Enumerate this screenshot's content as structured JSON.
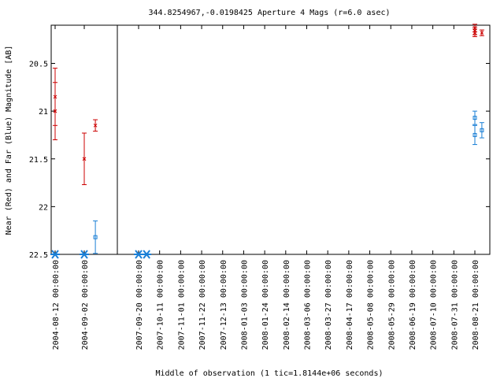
{
  "chart_data": {
    "type": "scatter",
    "title": "344.8254967,-0.0198425   Aperture 4 Mags (r=6.0 asec)",
    "xlabel": "Middle of observation (1 tic=1.8144e+06 seconds)",
    "ylabel": "Near (Red) and Far (Blue) Magnitude [AB]",
    "ylim": [
      22.5,
      20.1
    ],
    "y_ticks": [
      "20.5",
      "21",
      "21.5",
      "22",
      "22.5"
    ],
    "y_tick_values": [
      20.5,
      21.0,
      21.5,
      22.0,
      22.5
    ],
    "x_tick_labels": [
      "2004-08-12 00:00:00",
      "2004-09-02 00:00:00",
      "2007-09-20 00:00:00",
      "2007-10-11 00:00:00",
      "2007-11-01 00:00:00",
      "2007-11-22 00:00:00",
      "2007-12-13 00:00:00",
      "2008-01-03 00:00:00",
      "2008-01-24 00:00:00",
      "2008-02-14 00:00:00",
      "2008-03-06 00:00:00",
      "2008-03-27 00:00:00",
      "2008-04-17 00:00:00",
      "2008-05-08 00:00:00",
      "2008-05-29 00:00:00",
      "2008-06-19 00:00:00",
      "2008-07-10 00:00:00",
      "2008-07-31 00:00:00",
      "2008-08-21 00:00:00"
    ],
    "axis_break_after": "2004-09-02 00:00:00",
    "series": [
      {
        "color": "#cc0000",
        "marker": "x",
        "points": [
          {
            "x": "2004-08-12",
            "y": 20.85,
            "err": 0.3
          },
          {
            "x": "2004-08-12",
            "y": 21.0,
            "err": 0.3
          },
          {
            "x": "2004-09-02",
            "y": 21.5,
            "err": 0.27
          },
          {
            "x": "2004-09-10",
            "y": 21.15,
            "err": 0.06
          },
          {
            "x": "2008-08-21",
            "y": 20.13,
            "err": 0.04
          },
          {
            "x": "2008-08-21",
            "y": 20.16,
            "err": 0.04
          },
          {
            "x": "2008-08-21",
            "y": 20.18,
            "err": 0.04
          },
          {
            "x": "2008-08-28",
            "y": 20.18,
            "err": 0.03
          }
        ]
      },
      {
        "color": "#1a7fd6",
        "marker": "square",
        "points": [
          {
            "x": "2004-09-10",
            "y": 22.32,
            "err": 0.17
          },
          {
            "x": "2008-08-21",
            "y": 21.07,
            "err": 0.07
          },
          {
            "x": "2008-08-21",
            "y": 21.25,
            "err": 0.1
          },
          {
            "x": "2008-08-28",
            "y": 21.2,
            "err": 0.08
          }
        ]
      },
      {
        "color": "#1a7fd6",
        "marker": "asterisk",
        "points": [
          {
            "x": "2004-08-12",
            "y": 22.5
          },
          {
            "x": "2004-09-02",
            "y": 22.5
          },
          {
            "x": "2007-09-20",
            "y": 22.5
          },
          {
            "x": "2007-09-28",
            "y": 22.5
          }
        ]
      }
    ]
  }
}
